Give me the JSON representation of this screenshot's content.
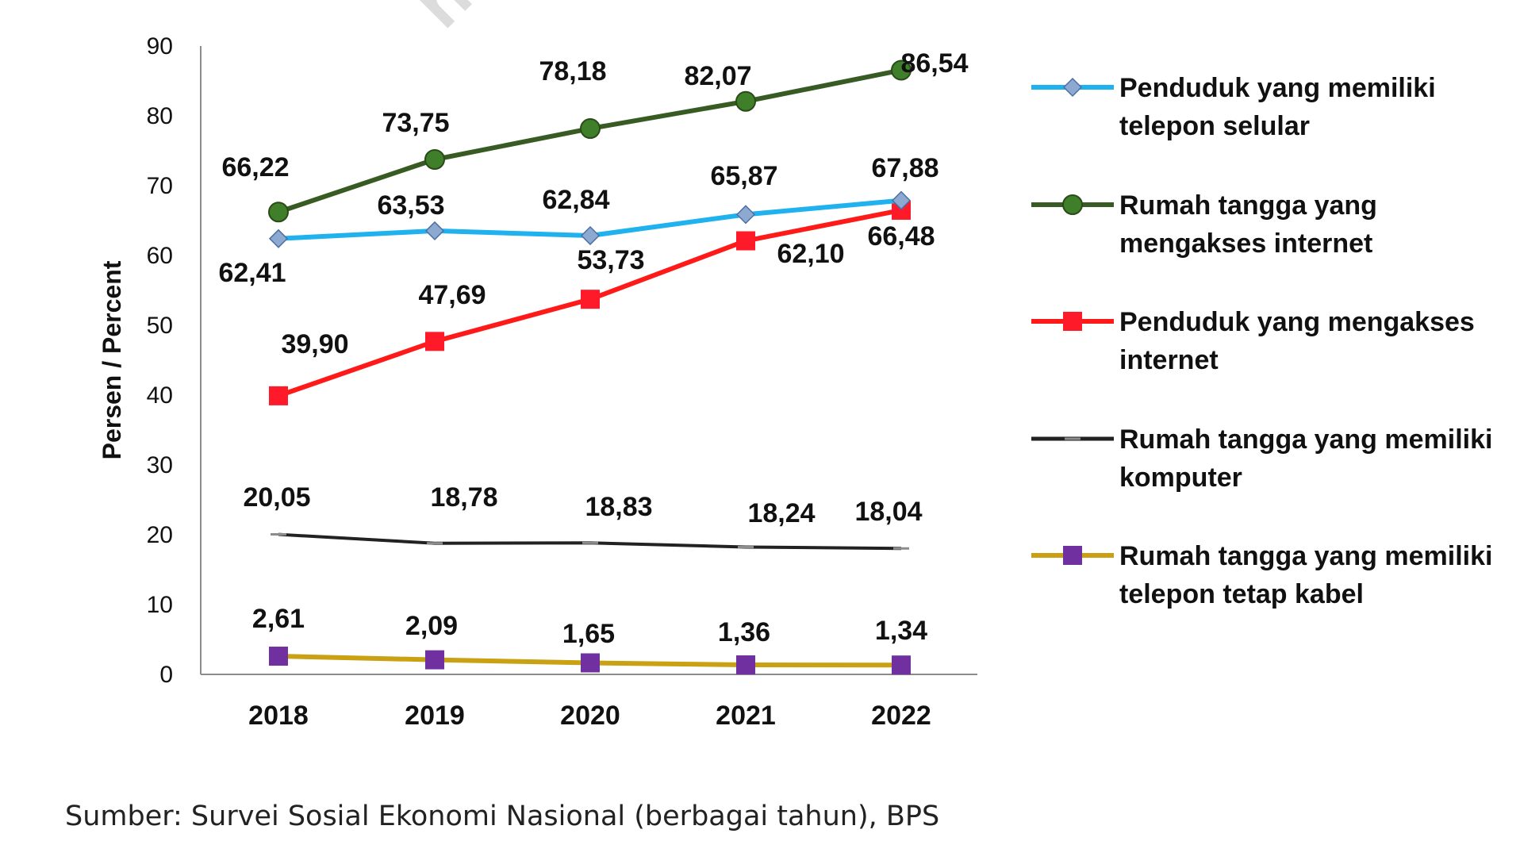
{
  "chart_data": {
    "type": "line",
    "title": "",
    "ylabel": "Persen / Percent",
    "xlabel": "",
    "ylim": [
      0,
      90
    ],
    "yticks": [
      0,
      10,
      20,
      30,
      40,
      50,
      60,
      70,
      80,
      90
    ],
    "categories": [
      "2018",
      "2019",
      "2020",
      "2021",
      "2022"
    ],
    "legend_position": "right",
    "series": [
      {
        "name": "Penduduk yang memiliki telepon selular",
        "legend_lines": [
          "Penduduk yang memiliki",
          "telepon selular"
        ],
        "values": [
          62.41,
          63.53,
          62.84,
          65.87,
          67.88
        ],
        "labels": [
          "62,41",
          "63,53",
          "62,84",
          "65,87",
          "67,88"
        ],
        "color": "#1fb2ee",
        "marker": "diamond",
        "marker_color": "#8ea9cf"
      },
      {
        "name": "Rumah tangga yang mengakses internet",
        "legend_lines": [
          "Rumah tangga yang",
          "mengakses internet"
        ],
        "values": [
          66.22,
          73.75,
          78.18,
          82.07,
          86.54
        ],
        "labels": [
          "66,22",
          "73,75",
          "78,18",
          "82,07",
          "86,54"
        ],
        "color": "#375b23",
        "marker": "circle",
        "marker_color": "#3f7f2a"
      },
      {
        "name": "Penduduk yang mengakses internet",
        "legend_lines": [
          "Penduduk yang mengakses",
          "internet"
        ],
        "values": [
          39.9,
          47.69,
          53.73,
          62.1,
          66.48
        ],
        "labels": [
          "39,90",
          "47,69",
          "53,73",
          "62,10",
          "66,48"
        ],
        "color": "#ff1a1a",
        "marker": "square",
        "marker_color": "#ff1a2a"
      },
      {
        "name": "Rumah tangga yang memiliki komputer",
        "legend_lines": [
          "Rumah tangga yang memiliki",
          "komputer"
        ],
        "values": [
          20.05,
          18.78,
          18.83,
          18.24,
          18.04
        ],
        "labels": [
          "20,05",
          "18,78",
          "18,83",
          "18,24",
          "18,04"
        ],
        "color": "#222222",
        "marker": "dash",
        "marker_color": "#8c8c8c"
      },
      {
        "name": "Rumah tangga yang memiliki telepon tetap kabel",
        "legend_lines": [
          "Rumah tangga yang memiliki",
          "telepon tetap kabel"
        ],
        "values": [
          2.61,
          2.09,
          1.65,
          1.36,
          1.34
        ],
        "labels": [
          "2,61",
          "2,09",
          "1,65",
          "1,36",
          "1,34"
        ],
        "color": "#c9a112",
        "marker": "square",
        "marker_color": "#7030a0"
      }
    ]
  },
  "source": "Sumber: Survei Sosial Ekonomi Nasional (berbagai tahun), BPS"
}
